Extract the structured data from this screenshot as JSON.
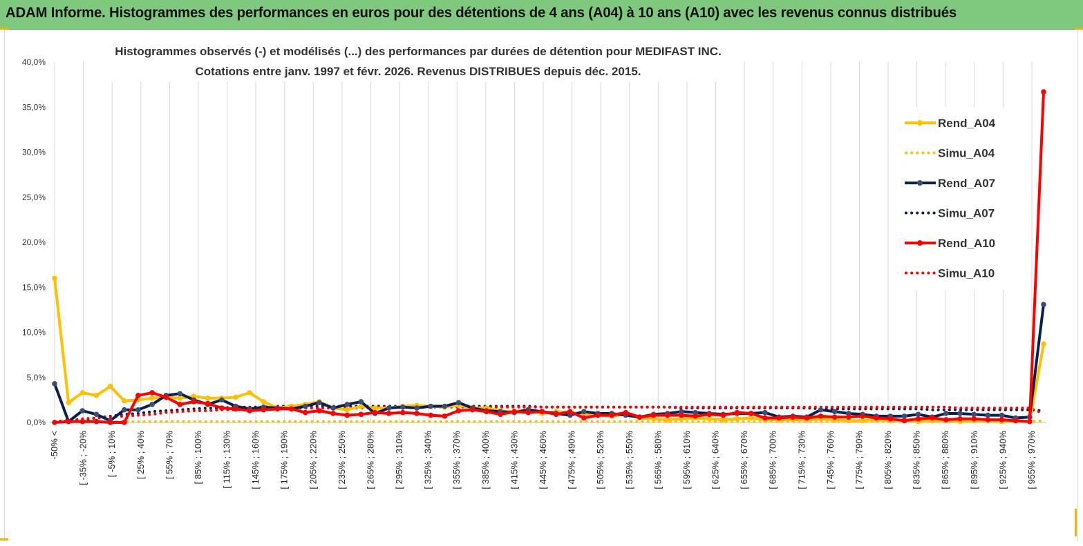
{
  "header": {
    "title": "ADAM Informe. Histogrammes des performances en euros pour des détentions de 4 ans (A04) à 10 ans (A10) avec les revenus connus distribués"
  },
  "chart_data": {
    "type": "line",
    "title_line1": "Histogrammes observés (-) et modélisés (...) des performances par durées de détention pour MEDIFAST INC.",
    "title_line2": "Cotations entre janv. 1997 et févr. 2026. Revenus DISTRIBUES depuis déc. 2015.",
    "y_tick_labels": [
      "0,0%",
      "5,0%",
      "10,0%",
      "15,0%",
      "20,0%",
      "25,0%",
      "30,0%",
      "35,0%",
      "40,0%"
    ],
    "ylim": [
      0,
      40
    ],
    "grid": "vertical",
    "legend_position": "right",
    "x_tick_labels": [
      "-50% <",
      "[ -35% ; -20%",
      "[ -5% ; 10%",
      "[ 25% ; 40%",
      "[ 55% ; 70%",
      "[ 85% ; 100%",
      "[ 115% ; 130%",
      "[ 145% ; 160%",
      "[ 175% ; 190%",
      "[ 205% ; 220%",
      "[ 235% ; 250%",
      "[ 265% ; 280%",
      "[ 295% ; 310%",
      "[ 325% ; 340%",
      "[ 355% ; 370%",
      "[ 385% ; 400%",
      "[ 415% ; 430%",
      "[ 445% ; 460%",
      "[ 475% ; 490%",
      "[ 505% ; 520%",
      "[ 535% ; 550%",
      "[ 565% ; 580%",
      "[ 595% ; 610%",
      "[ 625% ; 640%",
      "[ 655% ; 670%",
      "[ 685% ; 700%",
      "[ 715% ; 730%",
      "[ 745% ; 760%",
      "[ 775% ; 790%",
      "[ 805% ; 820%",
      "[ 835% ; 850%",
      "[ 865% ; 880%",
      "[ 895% ; 910%",
      "[ 925% ; 940%",
      "[ 955% ; 970%"
    ],
    "series": [
      {
        "name": "Rend_A04",
        "style": "solid",
        "color": "#ffc000",
        "values": [
          16.0,
          2.2,
          3.3,
          3.0,
          4.0,
          2.4,
          2.5,
          2.7,
          2.8,
          2.7,
          2.9,
          2.7,
          2.7,
          2.8,
          3.3,
          2.3,
          1.6,
          1.8,
          2.0,
          2.3,
          1.6,
          1.4,
          1.8,
          1.6,
          1.6,
          1.8,
          1.9,
          1.8,
          1.7,
          1.9,
          1.6,
          1.6,
          1.3,
          1.2,
          1.4,
          1.0,
          1.2,
          1.1,
          0.9,
          0.8,
          0.7,
          0.9,
          0.5,
          0.4,
          0.3,
          0.4,
          0.5,
          0.4,
          0.3,
          0.4,
          0.5,
          0.3,
          0.3,
          0.3,
          0.3,
          0.4,
          0.3,
          0.2,
          0.2,
          0.3,
          0.2,
          0.3,
          0.1,
          0.2,
          0.2,
          0.1,
          0.2,
          0.2,
          0.1,
          0.2,
          0.1,
          8.7
        ]
      },
      {
        "name": "Simu_A04",
        "style": "dotted",
        "color": "#ffc000",
        "values": [
          0.0,
          0.05,
          0.1,
          0.1,
          0.1,
          0.1,
          0.1,
          0.1,
          0.1,
          0.1,
          0.1,
          0.1,
          0.1,
          0.1,
          0.1,
          0.1,
          0.1,
          0.1,
          0.1,
          0.1,
          0.1,
          0.1,
          0.1,
          0.1,
          0.1,
          0.1,
          0.1,
          0.1,
          0.1,
          0.1,
          0.1,
          0.1,
          0.1,
          0.1,
          0.1,
          0.1,
          0.1,
          0.1,
          0.1,
          0.1,
          0.1,
          0.1,
          0.1,
          0.1,
          0.1,
          0.1,
          0.1,
          0.1,
          0.1,
          0.1,
          0.1,
          0.1,
          0.1,
          0.1,
          0.1,
          0.1,
          0.1,
          0.1,
          0.1,
          0.1,
          0.1,
          0.1,
          0.1,
          0.1,
          0.1,
          0.1,
          0.1,
          0.1,
          0.1,
          0.1,
          0.1,
          0.2
        ]
      },
      {
        "name": "Rend_A07",
        "style": "solid",
        "color": "#0b1f4f",
        "values": [
          4.3,
          0.1,
          1.3,
          0.9,
          0.2,
          1.4,
          1.4,
          2.0,
          3.0,
          3.2,
          2.5,
          2.0,
          2.5,
          1.8,
          1.5,
          1.7,
          1.6,
          1.5,
          1.8,
          2.2,
          1.6,
          2.0,
          2.3,
          1.0,
          1.6,
          1.7,
          1.6,
          1.8,
          1.8,
          2.2,
          1.6,
          1.3,
          1.2,
          1.1,
          1.4,
          1.2,
          1.0,
          0.8,
          1.2,
          1.0,
          1.0,
          0.8,
          0.6,
          0.9,
          1.0,
          1.2,
          1.1,
          1.0,
          0.9,
          1.0,
          1.0,
          1.1,
          0.6,
          0.7,
          0.6,
          1.4,
          1.2,
          1.0,
          0.9,
          0.7,
          0.7,
          0.7,
          0.9,
          0.6,
          1.0,
          1.0,
          0.9,
          0.8,
          0.8,
          0.5,
          0.6,
          13.1
        ]
      },
      {
        "name": "Simu_A07",
        "style": "dotted",
        "color": "#0b1f4f",
        "values": [
          0.1,
          0.2,
          0.3,
          0.5,
          0.7,
          0.9,
          1.0,
          1.2,
          1.3,
          1.4,
          1.5,
          1.6,
          1.6,
          1.7,
          1.7,
          1.7,
          1.8,
          1.8,
          1.8,
          1.8,
          1.8,
          1.8,
          1.8,
          1.8,
          1.8,
          1.8,
          1.8,
          1.8,
          1.8,
          1.8,
          1.8,
          1.8,
          1.8,
          1.8,
          1.8,
          1.7,
          1.7,
          1.7,
          1.7,
          1.7,
          1.7,
          1.7,
          1.7,
          1.7,
          1.7,
          1.6,
          1.6,
          1.6,
          1.6,
          1.6,
          1.6,
          1.6,
          1.6,
          1.6,
          1.6,
          1.5,
          1.5,
          1.5,
          1.5,
          1.5,
          1.5,
          1.5,
          1.5,
          1.4,
          1.4,
          1.4,
          1.4,
          1.4,
          1.4,
          1.4,
          1.4,
          1.3
        ]
      },
      {
        "name": "Rend_A10",
        "style": "solid",
        "color": "#ff0000",
        "values": [
          0.0,
          0.1,
          0.1,
          0.1,
          0.0,
          0.0,
          3.0,
          3.3,
          2.8,
          2.0,
          2.3,
          2.1,
          1.6,
          1.5,
          1.3,
          1.4,
          1.5,
          1.5,
          1.1,
          1.3,
          1.0,
          0.8,
          0.9,
          1.1,
          1.0,
          1.1,
          1.0,
          0.8,
          0.7,
          1.3,
          1.4,
          1.2,
          0.9,
          1.2,
          1.1,
          1.2,
          0.9,
          1.2,
          0.5,
          0.8,
          0.8,
          1.1,
          0.6,
          0.8,
          0.8,
          0.8,
          0.7,
          0.9,
          0.8,
          1.1,
          1.0,
          0.5,
          0.5,
          0.6,
          0.5,
          0.7,
          0.6,
          0.6,
          0.7,
          0.5,
          0.4,
          0.2,
          0.4,
          0.5,
          0.3,
          0.4,
          0.4,
          0.3,
          0.3,
          0.2,
          0.1,
          36.7
        ]
      },
      {
        "name": "Simu_A10",
        "style": "dotted",
        "color": "#ff0000",
        "values": [
          0.1,
          0.2,
          0.4,
          0.5,
          0.6,
          0.7,
          0.8,
          0.9,
          1.1,
          1.2,
          1.3,
          1.3,
          1.4,
          1.4,
          1.5,
          1.5,
          1.5,
          1.6,
          1.6,
          1.6,
          1.6,
          1.6,
          1.6,
          1.7,
          1.7,
          1.7,
          1.7,
          1.7,
          1.7,
          1.7,
          1.7,
          1.7,
          1.7,
          1.7,
          1.7,
          1.7,
          1.7,
          1.7,
          1.7,
          1.7,
          1.7,
          1.7,
          1.7,
          1.7,
          1.7,
          1.7,
          1.7,
          1.7,
          1.7,
          1.7,
          1.7,
          1.7,
          1.7,
          1.7,
          1.7,
          1.7,
          1.7,
          1.7,
          1.7,
          1.7,
          1.7,
          1.7,
          1.7,
          1.7,
          1.7,
          1.6,
          1.6,
          1.6,
          1.6,
          1.6,
          1.6,
          1.0
        ]
      }
    ]
  }
}
